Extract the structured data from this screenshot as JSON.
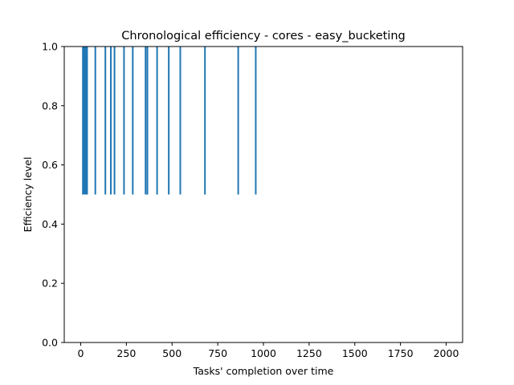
{
  "chart_data": {
    "type": "line",
    "title": "Chronological efficiency - cores - easy_bucketing",
    "xlabel": "Tasks' completion over time",
    "ylabel": "Efficiency level",
    "xlim": [
      -90,
      2090
    ],
    "ylim": [
      0,
      1
    ],
    "xticks": [
      0,
      250,
      500,
      750,
      1000,
      1250,
      1500,
      1750,
      2000
    ],
    "yticks": [
      0.0,
      0.2,
      0.4,
      0.6,
      0.8,
      1.0
    ],
    "grid": false,
    "color": "#1f77b4",
    "series": [
      {
        "low": 0.5,
        "high": 1.0,
        "x": [
          12,
          20,
          27,
          35,
          80,
          135,
          165,
          185,
          237,
          285,
          355,
          365,
          418,
          482,
          545,
          680,
          862,
          958
        ]
      }
    ]
  }
}
